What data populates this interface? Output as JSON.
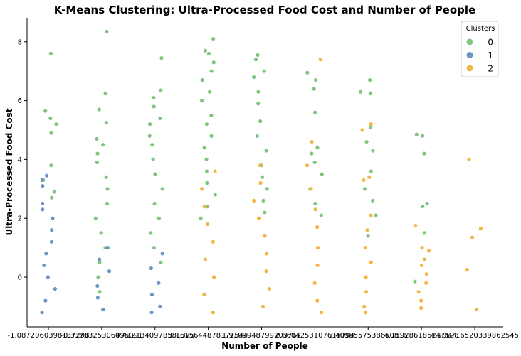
{
  "chart_data": {
    "type": "scatter",
    "title": "K-Means Clustering: Ultra-Processed Food Cost and Number of People",
    "xlabel": "Number of People",
    "ylabel": "Ultra-Processed Food Cost",
    "categories": [
      "-1.0872060398137298",
      "-0.3373325306495091",
      "0.4121340978581376",
      "1.1615644878172544",
      "1.9109948799703762",
      "2.6604253107615094",
      "3.4098557538650816",
      "4.159286185247528",
      "4.908716520339862545"
    ],
    "yticks": [
      0,
      2,
      4,
      6,
      8
    ],
    "ylim": [
      -1.3,
      8.8
    ],
    "grid": false,
    "legend": {
      "title": "Clusters",
      "placement": "top-right",
      "entries": [
        "0",
        "1",
        "2"
      ]
    },
    "cluster_colors": [
      "#7fc47f",
      "#6f94c9",
      "#f3b547"
    ],
    "series": [
      {
        "name": "0",
        "points": [
          [
            0,
            7.6
          ],
          [
            0,
            5.65
          ],
          [
            0,
            5.4
          ],
          [
            0,
            5.2
          ],
          [
            0,
            4.9
          ],
          [
            0,
            3.8
          ],
          [
            0,
            3.3
          ],
          [
            0,
            2.9
          ],
          [
            0,
            2.7
          ],
          [
            1,
            8.35
          ],
          [
            1,
            6.25
          ],
          [
            1,
            5.7
          ],
          [
            1,
            5.25
          ],
          [
            1,
            4.7
          ],
          [
            1,
            4.5
          ],
          [
            1,
            4.2
          ],
          [
            1,
            3.9
          ],
          [
            1,
            3.4
          ],
          [
            1,
            3.0
          ],
          [
            1,
            2.5
          ],
          [
            1,
            2.0
          ],
          [
            1,
            1.5
          ],
          [
            1,
            1.0
          ],
          [
            1,
            0.5
          ],
          [
            1,
            0.0
          ],
          [
            1,
            -0.5
          ],
          [
            2,
            7.45
          ],
          [
            2,
            6.35
          ],
          [
            2,
            6.1
          ],
          [
            2,
            5.8
          ],
          [
            2,
            5.4
          ],
          [
            2,
            5.2
          ],
          [
            2,
            4.8
          ],
          [
            2,
            4.5
          ],
          [
            2,
            4.0
          ],
          [
            2,
            3.5
          ],
          [
            2,
            3.0
          ],
          [
            2,
            2.5
          ],
          [
            2,
            2.0
          ],
          [
            2,
            1.5
          ],
          [
            2,
            1.0
          ],
          [
            2,
            0.5
          ],
          [
            3,
            8.1
          ],
          [
            3,
            7.7
          ],
          [
            3,
            7.6
          ],
          [
            3,
            7.3
          ],
          [
            3,
            7.0
          ],
          [
            3,
            6.7
          ],
          [
            3,
            6.3
          ],
          [
            3,
            6.0
          ],
          [
            3,
            5.5
          ],
          [
            3,
            5.2
          ],
          [
            3,
            4.8
          ],
          [
            3,
            4.4
          ],
          [
            3,
            4.0
          ],
          [
            3,
            3.6
          ],
          [
            3,
            3.2
          ],
          [
            3,
            2.8
          ],
          [
            3,
            2.4
          ],
          [
            3,
            2.0
          ],
          [
            4,
            7.55
          ],
          [
            4,
            7.4
          ],
          [
            4,
            7.0
          ],
          [
            4,
            6.8
          ],
          [
            4,
            6.3
          ],
          [
            4,
            5.9
          ],
          [
            4,
            5.3
          ],
          [
            4,
            4.8
          ],
          [
            4,
            4.3
          ],
          [
            4,
            3.8
          ],
          [
            4,
            3.4
          ],
          [
            4,
            3.0
          ],
          [
            4,
            2.6
          ],
          [
            4,
            2.2
          ],
          [
            5,
            6.95
          ],
          [
            5,
            6.7
          ],
          [
            5,
            6.4
          ],
          [
            5,
            5.6
          ],
          [
            5,
            4.4
          ],
          [
            5,
            4.2
          ],
          [
            5,
            3.9
          ],
          [
            5,
            3.5
          ],
          [
            5,
            3.0
          ],
          [
            5,
            2.5
          ],
          [
            5,
            2.1
          ],
          [
            6,
            6.7
          ],
          [
            6,
            6.3
          ],
          [
            6,
            6.25
          ],
          [
            6,
            5.1
          ],
          [
            6,
            4.6
          ],
          [
            6,
            4.3
          ],
          [
            6,
            3.6
          ],
          [
            6,
            3.0
          ],
          [
            6,
            2.6
          ],
          [
            6,
            2.1
          ],
          [
            6,
            1.4
          ],
          [
            7,
            4.85
          ],
          [
            7,
            4.8
          ],
          [
            7,
            4.2
          ],
          [
            7,
            2.5
          ],
          [
            7,
            2.4
          ],
          [
            7,
            1.5
          ],
          [
            7,
            -0.15
          ]
        ]
      },
      {
        "name": "1",
        "points": [
          [
            0,
            3.45
          ],
          [
            0,
            3.3
          ],
          [
            0,
            3.1
          ],
          [
            0,
            2.5
          ],
          [
            0,
            2.3
          ],
          [
            0,
            2.0
          ],
          [
            0,
            1.6
          ],
          [
            0,
            1.2
          ],
          [
            0,
            0.8
          ],
          [
            0,
            0.4
          ],
          [
            0,
            0.0
          ],
          [
            0,
            -0.4
          ],
          [
            0,
            -0.8
          ],
          [
            0,
            -1.2
          ],
          [
            1,
            1.0
          ],
          [
            1,
            0.6
          ],
          [
            1,
            0.2
          ],
          [
            1,
            -0.3
          ],
          [
            1,
            -0.7
          ],
          [
            1,
            -1.1
          ],
          [
            2,
            0.8
          ],
          [
            2,
            0.3
          ],
          [
            2,
            -0.2
          ],
          [
            2,
            -0.6
          ],
          [
            2,
            -1.0
          ],
          [
            2,
            -1.2
          ]
        ]
      },
      {
        "name": "2",
        "points": [
          [
            3,
            3.6
          ],
          [
            3,
            3.0
          ],
          [
            3,
            2.4
          ],
          [
            3,
            1.8
          ],
          [
            3,
            1.2
          ],
          [
            3,
            0.6
          ],
          [
            3,
            0.0
          ],
          [
            3,
            -0.6
          ],
          [
            3,
            -1.2
          ],
          [
            4,
            3.8
          ],
          [
            4,
            3.2
          ],
          [
            4,
            2.6
          ],
          [
            4,
            2.0
          ],
          [
            4,
            1.4
          ],
          [
            4,
            0.8
          ],
          [
            4,
            0.2
          ],
          [
            4,
            -0.4
          ],
          [
            4,
            -1.0
          ],
          [
            5,
            7.4
          ],
          [
            5,
            4.6
          ],
          [
            5,
            3.8
          ],
          [
            5,
            3.0
          ],
          [
            5,
            2.3
          ],
          [
            5,
            1.7
          ],
          [
            5,
            1.0
          ],
          [
            5,
            0.4
          ],
          [
            5,
            -0.2
          ],
          [
            5,
            -0.8
          ],
          [
            5,
            -1.2
          ],
          [
            6,
            5.2
          ],
          [
            6,
            5.0
          ],
          [
            6,
            3.4
          ],
          [
            6,
            3.3
          ],
          [
            6,
            2.1
          ],
          [
            6,
            1.6
          ],
          [
            6,
            1.0
          ],
          [
            6,
            0.5
          ],
          [
            6,
            0.0
          ],
          [
            6,
            -0.5
          ],
          [
            6,
            -1.0
          ],
          [
            6,
            -1.2
          ],
          [
            7,
            1.75
          ],
          [
            7,
            1.0
          ],
          [
            7,
            0.9
          ],
          [
            7,
            0.6
          ],
          [
            7,
            0.4
          ],
          [
            7,
            0.1
          ],
          [
            7,
            -0.2
          ],
          [
            7,
            -0.5
          ],
          [
            7,
            -0.8
          ],
          [
            7,
            -1.05
          ],
          [
            8,
            4.0
          ],
          [
            8,
            1.65
          ],
          [
            8,
            1.35
          ],
          [
            8,
            0.25
          ],
          [
            8,
            -1.1
          ]
        ]
      }
    ]
  }
}
